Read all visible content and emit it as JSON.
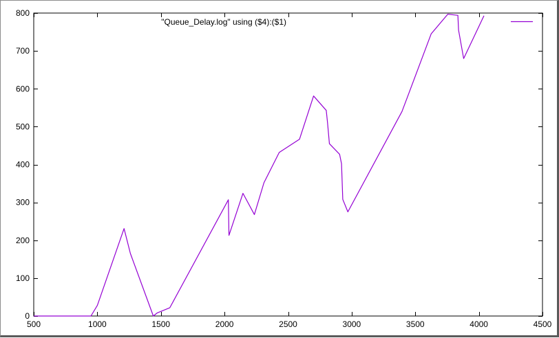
{
  "chart_data": {
    "type": "line",
    "title": "",
    "xlabel": "",
    "ylabel": "",
    "xlim": [
      500,
      4500
    ],
    "ylim": [
      0,
      800
    ],
    "x_ticks": [
      500,
      1000,
      1500,
      2000,
      2500,
      3000,
      3500,
      4000,
      4500
    ],
    "y_ticks": [
      0,
      100,
      200,
      300,
      400,
      500,
      600,
      700,
      800
    ],
    "grid": false,
    "legend": "top-right",
    "series": [
      {
        "name": "\"Queue_Delay.log\" using ($4):($1)",
        "color": "#9400d3",
        "x": [
          500,
          950,
          1000,
          1210,
          1260,
          1440,
          1470,
          1570,
          2030,
          2035,
          2145,
          2235,
          2310,
          2430,
          2590,
          2700,
          2800,
          2810,
          2825,
          2905,
          2920,
          2930,
          2970,
          3395,
          3440,
          3625,
          3755,
          3835,
          3840,
          3880,
          4040
        ],
        "y": [
          0,
          0,
          28,
          231,
          165,
          0,
          8,
          22,
          307,
          213,
          324,
          268,
          352,
          432,
          467,
          581,
          543,
          510,
          455,
          427,
          402,
          308,
          275,
          540,
          580,
          745,
          797,
          794,
          755,
          680,
          793
        ]
      }
    ]
  }
}
